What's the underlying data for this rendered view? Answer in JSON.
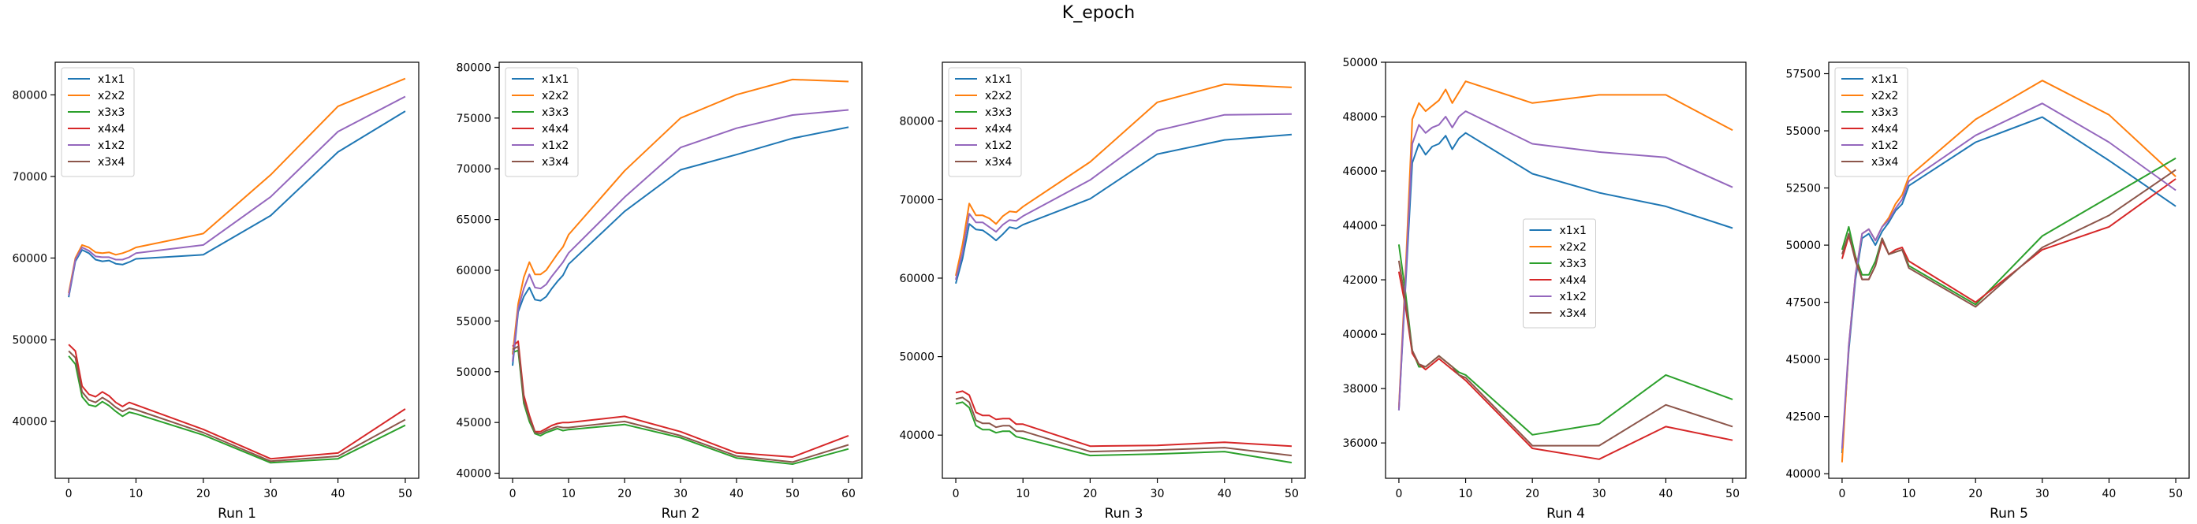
{
  "figure": {
    "title": "K_epoch",
    "colors": {
      "x1x1": "#1f77b4",
      "x2x2": "#ff7f0e",
      "x3x3": "#2ca02c",
      "x4x4": "#d62728",
      "x1x2": "#9467bd",
      "x3x4": "#8c564b"
    }
  },
  "chart_data": [
    {
      "type": "line",
      "xlabel": "Run 1",
      "xlim": [
        -2,
        52
      ],
      "ylim": [
        33000,
        84000
      ],
      "xticks": [
        0,
        10,
        20,
        30,
        40,
        50
      ],
      "yticks": [
        40000,
        50000,
        60000,
        70000,
        80000
      ],
      "legend": "top-left",
      "x": [
        0,
        1,
        2,
        3,
        4,
        5,
        6,
        7,
        8,
        9,
        10,
        20,
        30,
        40,
        50
      ],
      "series": [
        {
          "name": "x1x1",
          "color": "#1f77b4",
          "values": [
            55200,
            59600,
            61000,
            60600,
            59800,
            59600,
            59700,
            59300,
            59200,
            59500,
            59900,
            60400,
            65200,
            73000,
            78000
          ]
        },
        {
          "name": "x2x2",
          "color": "#ff7f0e",
          "values": [
            55700,
            60000,
            61600,
            61300,
            60700,
            60600,
            60700,
            60400,
            60600,
            60900,
            61300,
            63000,
            70200,
            78600,
            82000
          ]
        },
        {
          "name": "x3x3",
          "color": "#2ca02c",
          "values": [
            48000,
            47000,
            43000,
            42000,
            41800,
            42400,
            41900,
            41200,
            40600,
            41100,
            40900,
            38300,
            34900,
            35400,
            39500
          ]
        },
        {
          "name": "x4x4",
          "color": "#d62728",
          "values": [
            49400,
            48600,
            44300,
            43300,
            43000,
            43600,
            43100,
            42300,
            41800,
            42300,
            42000,
            39000,
            35400,
            36100,
            41500
          ]
        },
        {
          "name": "x1x2",
          "color": "#9467bd",
          "values": [
            55400,
            59800,
            61300,
            60900,
            60200,
            60100,
            60100,
            59800,
            59800,
            60100,
            60600,
            61600,
            67500,
            75500,
            79800
          ]
        },
        {
          "name": "x3x4",
          "color": "#8c564b",
          "values": [
            48600,
            47800,
            43600,
            42600,
            42300,
            42900,
            42400,
            41700,
            41200,
            41600,
            41400,
            38600,
            35100,
            35700,
            40200
          ]
        }
      ]
    },
    {
      "type": "line",
      "xlabel": "Run 2",
      "xlim": [
        -2.4,
        62.4
      ],
      "ylim": [
        39500,
        80500
      ],
      "xticks": [
        0,
        10,
        20,
        30,
        40,
        50,
        60
      ],
      "yticks": [
        40000,
        45000,
        50000,
        55000,
        60000,
        65000,
        70000,
        75000,
        80000
      ],
      "legend": "top-left",
      "x": [
        0,
        1,
        2,
        3,
        4,
        5,
        6,
        7,
        8,
        9,
        10,
        20,
        30,
        40,
        50,
        60
      ],
      "series": [
        {
          "name": "x1x1",
          "color": "#1f77b4",
          "values": [
            50600,
            55900,
            57400,
            58300,
            57100,
            57000,
            57400,
            58200,
            58900,
            59500,
            60600,
            65800,
            69900,
            71400,
            73000,
            74100
          ]
        },
        {
          "name": "x2x2",
          "color": "#ff7f0e",
          "values": [
            51700,
            56700,
            59300,
            60800,
            59600,
            59600,
            60000,
            60800,
            61600,
            62300,
            63500,
            69800,
            75000,
            77300,
            78800,
            78600
          ]
        },
        {
          "name": "x3x3",
          "color": "#2ca02c",
          "values": [
            51900,
            52100,
            46900,
            45100,
            43900,
            43700,
            44000,
            44200,
            44400,
            44200,
            44300,
            44800,
            43500,
            41500,
            40900,
            42400
          ]
        },
        {
          "name": "x4x4",
          "color": "#d62728",
          "values": [
            52500,
            53000,
            47700,
            45700,
            44100,
            44100,
            44400,
            44700,
            44900,
            45000,
            45000,
            45600,
            44100,
            42000,
            41600,
            43700
          ]
        },
        {
          "name": "x1x2",
          "color": "#9467bd",
          "values": [
            51000,
            56200,
            58200,
            59600,
            58300,
            58200,
            58600,
            59400,
            60100,
            60800,
            61700,
            67200,
            72100,
            74000,
            75300,
            75800
          ]
        },
        {
          "name": "x3x4",
          "color": "#8c564b",
          "values": [
            52200,
            52500,
            47200,
            45400,
            44000,
            43900,
            44200,
            44400,
            44600,
            44500,
            44500,
            45100,
            43700,
            41700,
            41100,
            42800
          ]
        }
      ]
    },
    {
      "type": "line",
      "xlabel": "Run 3",
      "xlim": [
        -2,
        52
      ],
      "ylim": [
        34500,
        87500
      ],
      "xticks": [
        0,
        10,
        20,
        30,
        40,
        50
      ],
      "yticks": [
        40000,
        50000,
        60000,
        70000,
        80000
      ],
      "legend": "top-left",
      "x": [
        0,
        1,
        2,
        3,
        4,
        5,
        6,
        7,
        8,
        9,
        10,
        20,
        30,
        40,
        50
      ],
      "series": [
        {
          "name": "x1x1",
          "color": "#1f77b4",
          "values": [
            59300,
            62500,
            66900,
            66200,
            66100,
            65500,
            64800,
            65600,
            66500,
            66300,
            66800,
            70100,
            75800,
            77600,
            78300
          ]
        },
        {
          "name": "x2x2",
          "color": "#ff7f0e",
          "values": [
            60300,
            64300,
            69500,
            68000,
            68000,
            67600,
            66900,
            67900,
            68500,
            68400,
            69100,
            74800,
            82400,
            84700,
            84300
          ]
        },
        {
          "name": "x3x3",
          "color": "#2ca02c",
          "values": [
            44000,
            44200,
            43500,
            41200,
            40700,
            40700,
            40300,
            40500,
            40500,
            39800,
            39600,
            37400,
            37600,
            37900,
            36500
          ]
        },
        {
          "name": "x4x4",
          "color": "#d62728",
          "values": [
            45400,
            45600,
            45100,
            42900,
            42500,
            42500,
            42000,
            42100,
            42100,
            41400,
            41400,
            38600,
            38700,
            39100,
            38600
          ]
        },
        {
          "name": "x1x2",
          "color": "#9467bd",
          "values": [
            59800,
            63300,
            68200,
            67100,
            67100,
            66500,
            65900,
            66800,
            67400,
            67300,
            67900,
            72500,
            78800,
            80800,
            80900
          ]
        },
        {
          "name": "x3x4",
          "color": "#8c564b",
          "values": [
            44600,
            44800,
            44200,
            41900,
            41500,
            41500,
            41000,
            41200,
            41200,
            40500,
            40500,
            37900,
            38100,
            38400,
            37400
          ]
        }
      ]
    },
    {
      "type": "line",
      "xlabel": "Run 4",
      "xlim": [
        -2,
        52
      ],
      "ylim": [
        34700,
        50000
      ],
      "xticks": [
        0,
        10,
        20,
        30,
        40,
        50
      ],
      "yticks": [
        36000,
        38000,
        40000,
        42000,
        44000,
        46000,
        48000,
        50000
      ],
      "legend": "center",
      "x": [
        0,
        1,
        2,
        3,
        4,
        5,
        6,
        7,
        8,
        9,
        10,
        20,
        30,
        40,
        50
      ],
      "series": [
        {
          "name": "x1x1",
          "color": "#1f77b4",
          "values": [
            37200,
            41800,
            46300,
            47000,
            46600,
            46900,
            47000,
            47300,
            46800,
            47200,
            47400,
            45900,
            45200,
            44700,
            43900
          ]
        },
        {
          "name": "x2x2",
          "color": "#ff7f0e",
          "values": [
            37300,
            42300,
            47900,
            48500,
            48200,
            48400,
            48600,
            49000,
            48500,
            48900,
            49300,
            48500,
            48800,
            48800,
            47500
          ]
        },
        {
          "name": "x3x3",
          "color": "#2ca02c",
          "values": [
            43300,
            41500,
            39400,
            38800,
            38800,
            39000,
            39200,
            39000,
            38800,
            38600,
            38500,
            36300,
            36700,
            38500,
            37600
          ]
        },
        {
          "name": "x4x4",
          "color": "#d62728",
          "values": [
            42300,
            41000,
            39300,
            38900,
            38700,
            38900,
            39100,
            38900,
            38700,
            38500,
            38300,
            35800,
            35400,
            36600,
            36100
          ]
        },
        {
          "name": "x1x2",
          "color": "#9467bd",
          "values": [
            37200,
            42000,
            47000,
            47700,
            47400,
            47600,
            47700,
            48000,
            47600,
            48000,
            48200,
            47000,
            46700,
            46500,
            45400
          ]
        },
        {
          "name": "x3x4",
          "color": "#8c564b",
          "values": [
            42700,
            41200,
            39400,
            38900,
            38800,
            39000,
            39200,
            39000,
            38800,
            38500,
            38400,
            35900,
            35900,
            37400,
            36600
          ]
        }
      ]
    },
    {
      "type": "line",
      "xlabel": "Run 5",
      "xlim": [
        -2,
        52
      ],
      "ylim": [
        39800,
        58000
      ],
      "xticks": [
        0,
        10,
        20,
        30,
        40,
        50
      ],
      "yticks": [
        40000,
        42500,
        45000,
        47500,
        50000,
        52500,
        55000,
        57500
      ],
      "legend": "top-left",
      "x": [
        0,
        1,
        2,
        3,
        4,
        5,
        6,
        7,
        8,
        9,
        10,
        20,
        30,
        40,
        50
      ],
      "series": [
        {
          "name": "x1x1",
          "color": "#1f77b4",
          "values": [
            40900,
            45400,
            48500,
            50300,
            50500,
            50000,
            50600,
            51000,
            51500,
            51800,
            52600,
            54500,
            55600,
            53700,
            51700
          ]
        },
        {
          "name": "x2x2",
          "color": "#ff7f0e",
          "values": [
            40500,
            45600,
            48700,
            50500,
            50700,
            50200,
            50800,
            51200,
            51800,
            52200,
            53000,
            55500,
            57200,
            55700,
            53000
          ]
        },
        {
          "name": "x3x3",
          "color": "#2ca02c",
          "values": [
            49800,
            50800,
            49500,
            48700,
            48700,
            49300,
            50300,
            49600,
            49700,
            49800,
            49100,
            47400,
            50400,
            52100,
            53800
          ]
        },
        {
          "name": "x4x4",
          "color": "#d62728",
          "values": [
            49400,
            50400,
            49400,
            48500,
            48500,
            49100,
            50200,
            49600,
            49800,
            49900,
            49300,
            47500,
            49800,
            50800,
            52900
          ]
        },
        {
          "name": "x1x2",
          "color": "#9467bd",
          "values": [
            41100,
            45600,
            48700,
            50500,
            50700,
            50200,
            50800,
            51100,
            51600,
            52000,
            52800,
            54800,
            56200,
            54500,
            52400
          ]
        },
        {
          "name": "x3x4",
          "color": "#8c564b",
          "values": [
            49600,
            50500,
            49300,
            48500,
            48500,
            49100,
            50300,
            49600,
            49700,
            49800,
            49000,
            47300,
            49900,
            51300,
            53300
          ]
        }
      ]
    }
  ]
}
